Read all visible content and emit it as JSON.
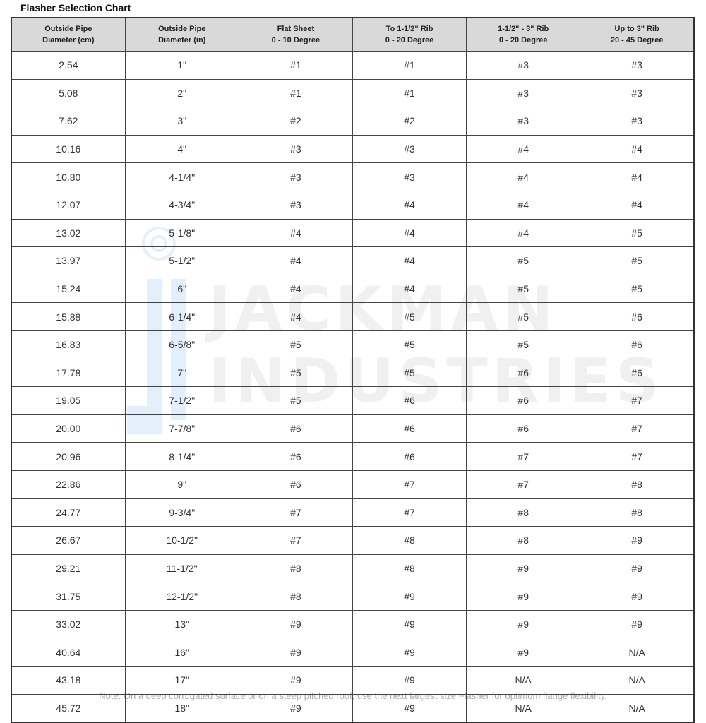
{
  "title": "Flasher Selection Chart",
  "watermark": {
    "line1": "JACKMAN",
    "line2": "INDUSTRIES",
    "logo_color": "#e3f0fb"
  },
  "headers": [
    [
      "Outside Pipe",
      "Diameter (cm)"
    ],
    [
      "Outside Pipe",
      "Diameter (in)"
    ],
    [
      "Flat Sheet",
      "0 - 10 Degree"
    ],
    [
      "To 1-1/2\"  Rib",
      "0 - 20 Degree"
    ],
    [
      "1-1/2\" - 3\" Rib",
      "0 - 20 Degree"
    ],
    [
      "Up to 3\" Rib",
      "20 - 45 Degree"
    ]
  ],
  "rows": [
    [
      "2.54",
      "1\"",
      "#1",
      "#1",
      "#3",
      "#3"
    ],
    [
      "5.08",
      "2\"",
      "#1",
      "#1",
      "#3",
      "#3"
    ],
    [
      "7.62",
      "3\"",
      "#2",
      "#2",
      "#3",
      "#3"
    ],
    [
      "10.16",
      "4\"",
      "#3",
      "#3",
      "#4",
      "#4"
    ],
    [
      "10.80",
      "4-1/4\"",
      "#3",
      "#3",
      "#4",
      "#4"
    ],
    [
      "12.07",
      "4-3/4\"",
      "#3",
      "#4",
      "#4",
      "#4"
    ],
    [
      "13.02",
      "5-1/8\"",
      "#4",
      "#4",
      "#4",
      "#5"
    ],
    [
      "13.97",
      "5-1/2\"",
      "#4",
      "#4",
      "#5",
      "#5"
    ],
    [
      "15.24",
      "6\"",
      "#4",
      "#4",
      "#5",
      "#5"
    ],
    [
      "15.88",
      "6-1/4\"",
      "#4",
      "#5",
      "#5",
      "#6"
    ],
    [
      "16.83",
      "6-5/8\"",
      "#5",
      "#5",
      "#5",
      "#6"
    ],
    [
      "17.78",
      "7\"",
      "#5",
      "#5",
      "#6",
      "#6"
    ],
    [
      "19.05",
      "7-1/2\"",
      "#5",
      "#6",
      "#6",
      "#7"
    ],
    [
      "20.00",
      "7-7/8\"",
      "#6",
      "#6",
      "#6",
      "#7"
    ],
    [
      "20.96",
      "8-1/4\"",
      "#6",
      "#6",
      "#7",
      "#7"
    ],
    [
      "22.86",
      "9\"",
      "#6",
      "#7",
      "#7",
      "#8"
    ],
    [
      "24.77",
      "9-3/4\"",
      "#7",
      "#7",
      "#8",
      "#8"
    ],
    [
      "26.67",
      "10-1/2\"",
      "#7",
      "#8",
      "#8",
      "#9"
    ],
    [
      "29.21",
      "11-1/2\"",
      "#8",
      "#8",
      "#9",
      "#9"
    ],
    [
      "31.75",
      "12-1/2\"",
      "#8",
      "#9",
      "#9",
      "#9"
    ],
    [
      "33.02",
      "13\"",
      "#9",
      "#9",
      "#9",
      "#9"
    ],
    [
      "40.64",
      "16\"",
      "#9",
      "#9",
      "#9",
      "N/A"
    ],
    [
      "43.18",
      "17\"",
      "#9",
      "#9",
      "N/A",
      "N/A"
    ],
    [
      "45.72",
      "18\"",
      "#9",
      "#9",
      "N/A",
      "N/A"
    ]
  ],
  "note": "Note:  On a deep corrugated surface or on a steep pitched roof, use the next largest size Flasher for optimum flange flexibility."
}
